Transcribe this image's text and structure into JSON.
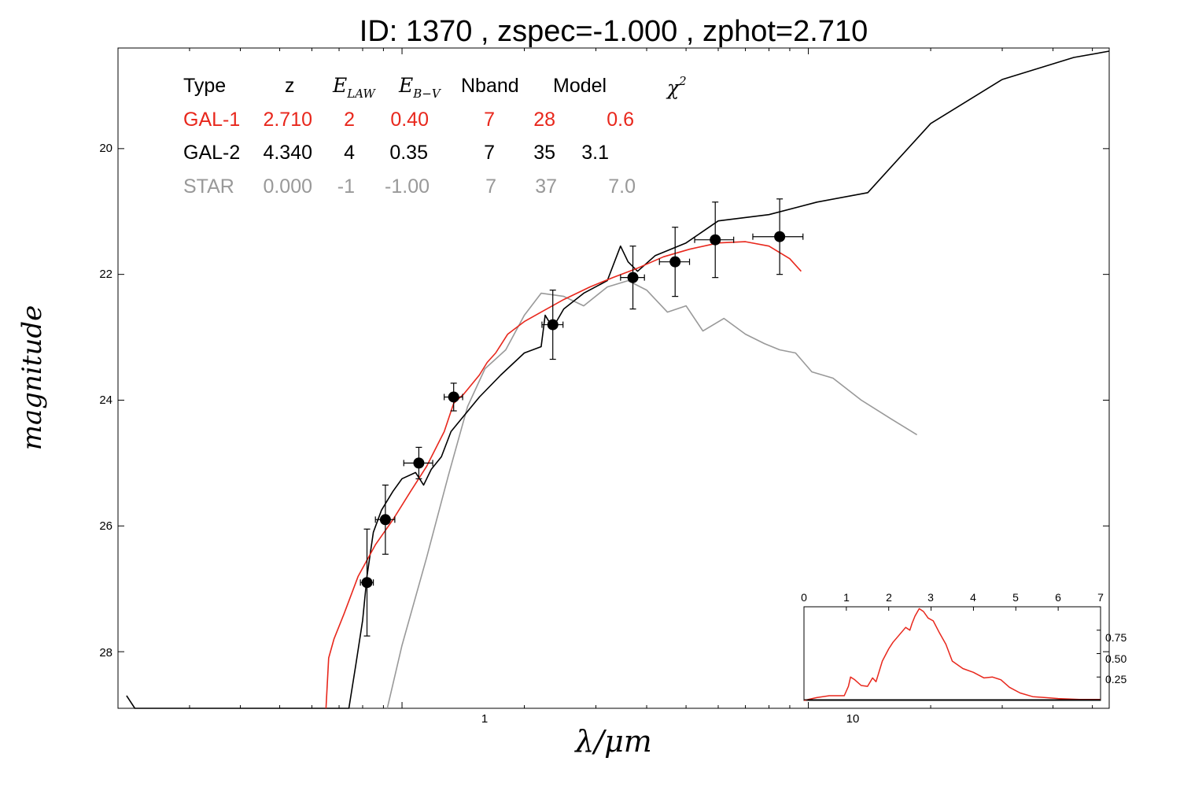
{
  "title": "ID:  1370  , zspec=-1.000 , zphot=2.710",
  "axes": {
    "xlabel": "λ/μm",
    "ylabel": "magnitude",
    "x_ticks": [
      "1",
      "10"
    ],
    "y_ticks": [
      "20",
      "22",
      "24",
      "26",
      "28"
    ]
  },
  "legend": {
    "headers": [
      "Type",
      "z",
      "E_LAW",
      "E_B−V",
      "Nband",
      "Model",
      "χ2"
    ],
    "rows": [
      {
        "type": "GAL-1",
        "z": "2.710",
        "elaw": "2",
        "ebv": "0.40",
        "nband": "7",
        "model": "28",
        "chi2": "0.6",
        "color": "#e8271c"
      },
      {
        "type": "GAL-2",
        "z": "4.340",
        "elaw": "4",
        "ebv": "0.35",
        "nband": "7",
        "model": "35",
        "chi2": "3.1",
        "color": "#000000"
      },
      {
        "type": "STAR",
        "z": "0.000",
        "elaw": "-1",
        "ebv": "-1.00",
        "nband": "7",
        "model": "37",
        "chi2": "7.0",
        "color": "#999999"
      }
    ]
  },
  "inset": {
    "x_ticks": [
      "0",
      "1",
      "2",
      "3",
      "4",
      "5",
      "6",
      "7"
    ],
    "y_ticks": [
      "0.75",
      "0.50",
      "0.25"
    ],
    "color": "#e8271c"
  },
  "chart_data": [
    {
      "type": "line",
      "x_scale": "log",
      "y_inverted": true,
      "xlim": [
        0.2,
        55
      ],
      "ylim": [
        28.9,
        18.4
      ],
      "series": [
        {
          "name": "GAL-1",
          "color": "#e8271c",
          "x": [
            0.65,
            0.66,
            0.68,
            0.72,
            0.78,
            0.86,
            0.95,
            1.05,
            1.15,
            1.27,
            1.34,
            1.42,
            1.55,
            1.62,
            1.7,
            1.82,
            2.0,
            2.2,
            2.5,
            2.9,
            3.3,
            3.8,
            4.4,
            5.1,
            6.0,
            7.0,
            8.0,
            9.0,
            9.6
          ],
          "y": [
            28.9,
            28.1,
            27.8,
            27.4,
            26.8,
            26.3,
            25.9,
            25.45,
            25.05,
            24.5,
            24.05,
            23.9,
            23.6,
            23.4,
            23.25,
            22.95,
            22.75,
            22.6,
            22.4,
            22.2,
            22.05,
            21.9,
            21.72,
            21.6,
            21.5,
            21.48,
            21.55,
            21.75,
            21.95
          ]
        },
        {
          "name": "GAL-2",
          "color": "#000000",
          "x": [
            0.21,
            0.22,
            0.74,
            0.77,
            0.8,
            0.82,
            0.85,
            0.89,
            0.95,
            1.0,
            1.08,
            1.13,
            1.18,
            1.25,
            1.32,
            1.42,
            1.55,
            1.75,
            2.0,
            2.2,
            2.25,
            2.35,
            2.5,
            2.8,
            3.2,
            3.45,
            3.6,
            3.8,
            4.2,
            5.0,
            6.0,
            8.0,
            10.5,
            14,
            20,
            30,
            45,
            55
          ],
          "y": [
            28.7,
            28.9,
            28.9,
            28.2,
            27.5,
            26.8,
            26.1,
            25.75,
            25.45,
            25.25,
            25.15,
            25.35,
            25.1,
            24.9,
            24.5,
            24.25,
            23.95,
            23.6,
            23.25,
            23.15,
            22.65,
            22.85,
            22.55,
            22.3,
            22.1,
            21.55,
            21.8,
            21.95,
            21.7,
            21.5,
            21.15,
            21.05,
            20.85,
            20.7,
            19.6,
            18.9,
            18.55,
            18.45
          ]
        },
        {
          "name": "STAR",
          "color": "#999999",
          "x": [
            0.92,
            1.0,
            1.15,
            1.3,
            1.45,
            1.6,
            1.8,
            2.0,
            2.2,
            2.5,
            2.8,
            3.2,
            3.6,
            4.0,
            4.5,
            5.0,
            5.5,
            6.2,
            7.0,
            7.8,
            8.5,
            9.3,
            10.2,
            11.5,
            13.5,
            16.0,
            18.5
          ],
          "y": [
            28.9,
            27.9,
            26.5,
            25.2,
            24.1,
            23.5,
            23.2,
            22.65,
            22.3,
            22.35,
            22.5,
            22.2,
            22.1,
            22.25,
            22.6,
            22.5,
            22.9,
            22.7,
            22.95,
            23.1,
            23.2,
            23.25,
            23.55,
            23.65,
            24.0,
            24.3,
            24.55
          ]
        }
      ],
      "points": {
        "name": "photometry",
        "x": [
          0.82,
          0.91,
          1.1,
          1.34,
          2.35,
          3.7,
          4.7,
          5.9,
          8.5
        ],
        "y": [
          26.9,
          25.9,
          25.0,
          23.95,
          22.8,
          22.05,
          21.8,
          21.45,
          21.4
        ],
        "xerr_lo": [
          0.03,
          0.05,
          0.09,
          0.07,
          0.14,
          0.25,
          0.4,
          0.65,
          1.2
        ],
        "xerr_hi": [
          0.03,
          0.05,
          0.09,
          0.07,
          0.14,
          0.25,
          0.4,
          0.65,
          1.2
        ],
        "yerr": [
          0.85,
          0.55,
          0.25,
          0.22,
          0.55,
          0.5,
          0.55,
          0.6,
          0.6
        ]
      }
    },
    {
      "type": "line",
      "name": "inset",
      "xlim": [
        0,
        7
      ],
      "ylim": [
        0,
        1.0
      ],
      "series": [
        {
          "name": "",
          "color": "#e8271c",
          "x": [
            0.0,
            0.3,
            0.6,
            0.95,
            1.05,
            1.1,
            1.2,
            1.35,
            1.5,
            1.62,
            1.7,
            1.85,
            2.0,
            2.1,
            2.25,
            2.4,
            2.5,
            2.55,
            2.62,
            2.72,
            2.82,
            2.93,
            3.05,
            3.2,
            3.35,
            3.5,
            3.75,
            4.0,
            4.25,
            4.45,
            4.65,
            4.85,
            5.1,
            5.4,
            5.7,
            6.0,
            6.5,
            7.0
          ],
          "y": [
            0.0,
            0.03,
            0.05,
            0.05,
            0.15,
            0.25,
            0.22,
            0.16,
            0.15,
            0.24,
            0.2,
            0.42,
            0.55,
            0.62,
            0.7,
            0.78,
            0.75,
            0.82,
            0.9,
            0.98,
            0.95,
            0.88,
            0.85,
            0.72,
            0.6,
            0.42,
            0.34,
            0.3,
            0.24,
            0.25,
            0.22,
            0.14,
            0.08,
            0.04,
            0.03,
            0.02,
            0.01,
            0.01
          ]
        }
      ]
    }
  ]
}
